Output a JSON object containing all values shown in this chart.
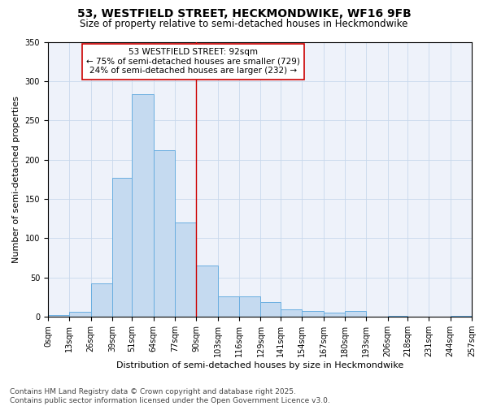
{
  "title_line1": "53, WESTFIELD STREET, HECKMONDWIKE, WF16 9FB",
  "title_line2": "Size of property relative to semi-detached houses in Heckmondwike",
  "xlabel": "Distribution of semi-detached houses by size in Heckmondwike",
  "ylabel": "Number of semi-detached properties",
  "footer_line1": "Contains HM Land Registry data © Crown copyright and database right 2025.",
  "footer_line2": "Contains public sector information licensed under the Open Government Licence v3.0.",
  "annotation_line1": "53 WESTFIELD STREET: 92sqm",
  "annotation_line2": "← 75% of semi-detached houses are smaller (729)",
  "annotation_line3": "24% of semi-detached houses are larger (232) →",
  "property_size": 92,
  "bar_edges": [
    0,
    13,
    26,
    39,
    51,
    64,
    77,
    90,
    103,
    116,
    129,
    141,
    154,
    167,
    180,
    193,
    206,
    218,
    231,
    244,
    257
  ],
  "bar_labels": [
    "0sqm",
    "13sqm",
    "26sqm",
    "39sqm",
    "51sqm",
    "64sqm",
    "77sqm",
    "90sqm",
    "103sqm",
    "116sqm",
    "129sqm",
    "141sqm",
    "154sqm",
    "167sqm",
    "180sqm",
    "193sqm",
    "206sqm",
    "218sqm",
    "231sqm",
    "244sqm",
    "257sqm"
  ],
  "bar_heights": [
    2,
    6,
    43,
    177,
    283,
    212,
    120,
    65,
    26,
    26,
    19,
    10,
    7,
    5,
    7,
    0,
    1,
    0,
    0,
    1
  ],
  "bar_color": "#c5daf0",
  "bar_edge_color": "#6aaee0",
  "vline_color": "#cc0000",
  "vline_x": 90,
  "annotation_box_edge_color": "#cc0000",
  "grid_color": "#c8d8ec",
  "ylim": [
    0,
    350
  ],
  "yticks": [
    0,
    50,
    100,
    150,
    200,
    250,
    300,
    350
  ],
  "bg_color": "#eef2fa",
  "title_fontsize": 10,
  "subtitle_fontsize": 8.5,
  "axis_label_fontsize": 8,
  "tick_fontsize": 7,
  "footer_fontsize": 6.5,
  "annotation_fontsize": 7.5
}
